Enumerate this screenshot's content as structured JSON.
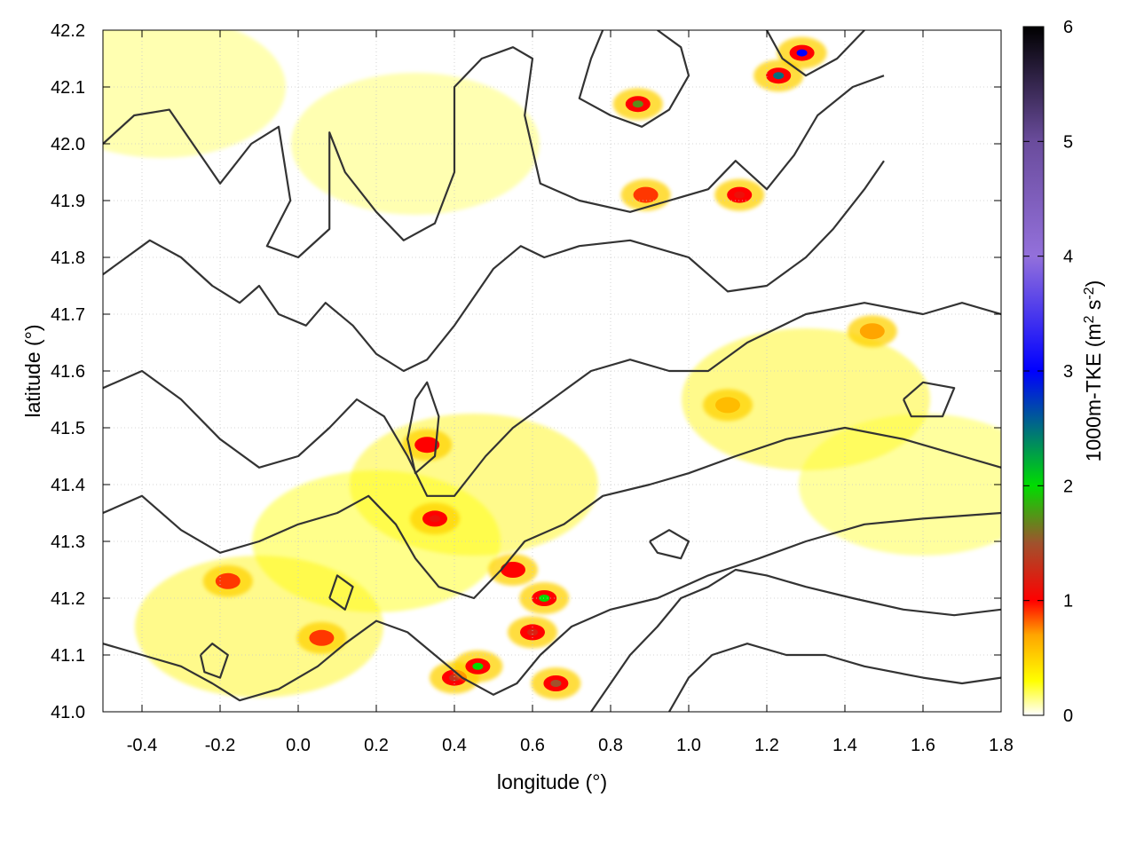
{
  "chart_data": {
    "type": "heatmap",
    "title": "",
    "xlabel": "longitude (°)",
    "ylabel": "latitude (°)",
    "xlim": [
      -0.5,
      1.8
    ],
    "ylim": [
      41.0,
      42.2
    ],
    "x_ticks": [
      "-0.4",
      "-0.2",
      "0.0",
      "0.2",
      "0.4",
      "0.6",
      "0.8",
      "1.0",
      "1.2",
      "1.4",
      "1.6",
      "1.8"
    ],
    "y_ticks": [
      "41.0",
      "41.1",
      "41.2",
      "41.3",
      "41.4",
      "41.5",
      "41.6",
      "41.7",
      "41.8",
      "41.9",
      "42.0",
      "42.1",
      "42.2"
    ],
    "grid": true,
    "colorbar": {
      "label_main": "1000m-TKE (m",
      "label_sup1": "2",
      "label_mid": " s",
      "label_sup2": "-2",
      "label_end": ")",
      "range": [
        0,
        6
      ],
      "ticks": [
        "0",
        "1",
        "2",
        "3",
        "4",
        "5",
        "6"
      ],
      "colors": [
        {
          "v": 0.0,
          "c": "#ffffff"
        },
        {
          "v": 0.3,
          "c": "#ffff00"
        },
        {
          "v": 0.7,
          "c": "#ffa500"
        },
        {
          "v": 1.0,
          "c": "#ff0000"
        },
        {
          "v": 1.5,
          "c": "#a0522d"
        },
        {
          "v": 2.0,
          "c": "#00dd00"
        },
        {
          "v": 3.0,
          "c": "#0000ff"
        },
        {
          "v": 4.0,
          "c": "#9370db"
        },
        {
          "v": 5.0,
          "c": "#6a4c9c"
        },
        {
          "v": 6.0,
          "c": "#000000"
        }
      ]
    },
    "hotspots": [
      {
        "lon": 0.33,
        "lat": 41.47,
        "value": 1.0
      },
      {
        "lon": 0.35,
        "lat": 41.34,
        "value": 1.1
      },
      {
        "lon": 0.4,
        "lat": 41.06,
        "value": 1.3
      },
      {
        "lon": 0.46,
        "lat": 41.08,
        "value": 2.0
      },
      {
        "lon": 0.55,
        "lat": 41.25,
        "value": 1.0
      },
      {
        "lon": 0.63,
        "lat": 41.2,
        "value": 2.0
      },
      {
        "lon": 0.66,
        "lat": 41.05,
        "value": 1.5
      },
      {
        "lon": 0.87,
        "lat": 42.07,
        "value": 1.7
      },
      {
        "lon": 0.89,
        "lat": 41.91,
        "value": 0.9
      },
      {
        "lon": 1.13,
        "lat": 41.91,
        "value": 1.1
      },
      {
        "lon": 1.23,
        "lat": 42.12,
        "value": 2.5
      },
      {
        "lon": 1.29,
        "lat": 42.16,
        "value": 3.0
      },
      {
        "lon": 1.47,
        "lat": 41.67,
        "value": 0.7
      },
      {
        "lon": 1.1,
        "lat": 41.54,
        "value": 0.6
      },
      {
        "lon": -0.18,
        "lat": 41.23,
        "value": 0.9
      },
      {
        "lon": 0.06,
        "lat": 41.13,
        "value": 0.9
      },
      {
        "lon": 0.6,
        "lat": 41.14,
        "value": 1.2
      }
    ],
    "background_tke": [
      {
        "lon": 0.45,
        "lat": 41.4,
        "value": 0.35
      },
      {
        "lon": 0.2,
        "lat": 41.3,
        "value": 0.3
      },
      {
        "lon": 1.3,
        "lat": 41.55,
        "value": 0.35
      },
      {
        "lon": -0.35,
        "lat": 42.1,
        "value": 0.2
      },
      {
        "lon": 1.6,
        "lat": 41.4,
        "value": 0.25
      },
      {
        "lon": 0.3,
        "lat": 42.0,
        "value": 0.2
      },
      {
        "lon": -0.1,
        "lat": 41.15,
        "value": 0.35
      }
    ],
    "contours": [
      [
        [
          -0.5,
          42.0
        ],
        [
          -0.42,
          42.05
        ],
        [
          -0.33,
          42.06
        ],
        [
          -0.25,
          41.98
        ],
        [
          -0.2,
          41.93
        ],
        [
          -0.12,
          42.0
        ],
        [
          -0.05,
          42.03
        ],
        [
          -0.02,
          41.9
        ],
        [
          -0.08,
          41.82
        ],
        [
          0.0,
          41.8
        ],
        [
          0.08,
          41.85
        ],
        [
          0.08,
          42.02
        ],
        [
          0.12,
          41.95
        ],
        [
          0.2,
          41.88
        ],
        [
          0.27,
          41.83
        ],
        [
          0.35,
          41.86
        ],
        [
          0.4,
          41.95
        ],
        [
          0.4,
          42.1
        ],
        [
          0.47,
          42.15
        ],
        [
          0.55,
          42.17
        ],
        [
          0.6,
          42.15
        ],
        [
          0.58,
          42.05
        ],
        [
          0.62,
          41.93
        ],
        [
          0.72,
          41.9
        ],
        [
          0.85,
          41.88
        ],
        [
          0.95,
          41.9
        ],
        [
          1.05,
          41.92
        ],
        [
          1.12,
          41.97
        ],
        [
          1.2,
          41.92
        ],
        [
          1.27,
          41.98
        ],
        [
          1.33,
          42.05
        ],
        [
          1.42,
          42.1
        ],
        [
          1.5,
          42.12
        ]
      ],
      [
        [
          -0.5,
          41.77
        ],
        [
          -0.38,
          41.83
        ],
        [
          -0.3,
          41.8
        ],
        [
          -0.22,
          41.75
        ],
        [
          -0.15,
          41.72
        ],
        [
          -0.1,
          41.75
        ],
        [
          -0.05,
          41.7
        ],
        [
          0.02,
          41.68
        ],
        [
          0.07,
          41.72
        ],
        [
          0.14,
          41.68
        ],
        [
          0.2,
          41.63
        ],
        [
          0.27,
          41.6
        ],
        [
          0.33,
          41.62
        ],
        [
          0.4,
          41.68
        ],
        [
          0.5,
          41.78
        ],
        [
          0.57,
          41.82
        ],
        [
          0.63,
          41.8
        ],
        [
          0.72,
          41.82
        ],
        [
          0.85,
          41.83
        ],
        [
          1.0,
          41.8
        ],
        [
          1.1,
          41.74
        ],
        [
          1.2,
          41.75
        ],
        [
          1.3,
          41.8
        ],
        [
          1.37,
          41.85
        ],
        [
          1.45,
          41.92
        ],
        [
          1.5,
          41.97
        ]
      ],
      [
        [
          -0.5,
          41.57
        ],
        [
          -0.4,
          41.6
        ],
        [
          -0.3,
          41.55
        ],
        [
          -0.2,
          41.48
        ],
        [
          -0.1,
          41.43
        ],
        [
          0.0,
          41.45
        ],
        [
          0.08,
          41.5
        ],
        [
          0.15,
          41.55
        ],
        [
          0.22,
          41.52
        ],
        [
          0.28,
          41.45
        ],
        [
          0.33,
          41.38
        ],
        [
          0.4,
          41.38
        ],
        [
          0.48,
          41.45
        ],
        [
          0.55,
          41.5
        ],
        [
          0.65,
          41.55
        ],
        [
          0.75,
          41.6
        ],
        [
          0.85,
          41.62
        ],
        [
          0.95,
          41.6
        ],
        [
          1.05,
          41.6
        ],
        [
          1.15,
          41.65
        ],
        [
          1.3,
          41.7
        ],
        [
          1.45,
          41.72
        ],
        [
          1.6,
          41.7
        ],
        [
          1.7,
          41.72
        ],
        [
          1.8,
          41.7
        ]
      ],
      [
        [
          -0.5,
          41.35
        ],
        [
          -0.4,
          41.38
        ],
        [
          -0.3,
          41.32
        ],
        [
          -0.2,
          41.28
        ],
        [
          -0.1,
          41.3
        ],
        [
          0.0,
          41.33
        ],
        [
          0.1,
          41.35
        ],
        [
          0.18,
          41.38
        ],
        [
          0.25,
          41.33
        ],
        [
          0.3,
          41.27
        ],
        [
          0.36,
          41.22
        ],
        [
          0.45,
          41.2
        ],
        [
          0.52,
          41.25
        ],
        [
          0.58,
          41.3
        ],
        [
          0.68,
          41.33
        ],
        [
          0.78,
          41.38
        ],
        [
          0.9,
          41.4
        ],
        [
          1.0,
          41.42
        ],
        [
          1.12,
          41.45
        ],
        [
          1.25,
          41.48
        ],
        [
          1.4,
          41.5
        ],
        [
          1.55,
          41.48
        ],
        [
          1.7,
          41.45
        ],
        [
          1.8,
          41.43
        ]
      ],
      [
        [
          -0.5,
          41.12
        ],
        [
          -0.4,
          41.1
        ],
        [
          -0.3,
          41.08
        ],
        [
          -0.22,
          41.05
        ],
        [
          -0.15,
          41.02
        ],
        [
          -0.05,
          41.04
        ],
        [
          0.05,
          41.08
        ],
        [
          0.12,
          41.12
        ],
        [
          0.2,
          41.16
        ],
        [
          0.28,
          41.14
        ],
        [
          0.35,
          41.1
        ],
        [
          0.42,
          41.06
        ],
        [
          0.5,
          41.03
        ],
        [
          0.56,
          41.05
        ],
        [
          0.62,
          41.1
        ],
        [
          0.7,
          41.15
        ],
        [
          0.8,
          41.18
        ],
        [
          0.92,
          41.2
        ],
        [
          1.05,
          41.24
        ],
        [
          1.18,
          41.27
        ],
        [
          1.3,
          41.3
        ],
        [
          1.45,
          41.33
        ],
        [
          1.6,
          41.34
        ],
        [
          1.8,
          41.35
        ]
      ],
      [
        [
          0.75,
          41.0
        ],
        [
          0.8,
          41.05
        ],
        [
          0.85,
          41.1
        ],
        [
          0.92,
          41.15
        ],
        [
          0.98,
          41.2
        ],
        [
          1.05,
          41.22
        ],
        [
          1.12,
          41.25
        ],
        [
          1.2,
          41.24
        ],
        [
          1.3,
          41.22
        ],
        [
          1.42,
          41.2
        ],
        [
          1.55,
          41.18
        ],
        [
          1.68,
          41.17
        ],
        [
          1.8,
          41.18
        ]
      ],
      [
        [
          0.95,
          41.0
        ],
        [
          1.0,
          41.06
        ],
        [
          1.06,
          41.1
        ],
        [
          1.15,
          41.12
        ],
        [
          1.25,
          41.1
        ],
        [
          1.35,
          41.1
        ],
        [
          1.45,
          41.08
        ],
        [
          1.6,
          41.06
        ],
        [
          1.7,
          41.05
        ],
        [
          1.8,
          41.06
        ]
      ],
      [
        [
          0.78,
          42.2
        ],
        [
          0.75,
          42.15
        ],
        [
          0.72,
          42.08
        ],
        [
          0.8,
          42.05
        ],
        [
          0.88,
          42.03
        ],
        [
          0.95,
          42.06
        ],
        [
          1.0,
          42.12
        ],
        [
          0.98,
          42.17
        ],
        [
          0.92,
          42.2
        ]
      ],
      [
        [
          1.2,
          42.2
        ],
        [
          1.24,
          42.15
        ],
        [
          1.3,
          42.12
        ],
        [
          1.38,
          42.15
        ],
        [
          1.45,
          42.2
        ]
      ],
      [
        [
          0.3,
          41.55
        ],
        [
          0.28,
          41.48
        ],
        [
          0.3,
          41.42
        ],
        [
          0.35,
          41.45
        ],
        [
          0.36,
          41.52
        ],
        [
          0.33,
          41.58
        ],
        [
          0.3,
          41.55
        ]
      ],
      [
        [
          0.9,
          41.3
        ],
        [
          0.95,
          41.32
        ],
        [
          1.0,
          41.3
        ],
        [
          0.98,
          41.27
        ],
        [
          0.92,
          41.28
        ],
        [
          0.9,
          41.3
        ]
      ],
      [
        [
          1.55,
          41.55
        ],
        [
          1.6,
          41.58
        ],
        [
          1.68,
          41.57
        ],
        [
          1.65,
          41.52
        ],
        [
          1.57,
          41.52
        ],
        [
          1.55,
          41.55
        ]
      ],
      [
        [
          -0.25,
          41.1
        ],
        [
          -0.22,
          41.12
        ],
        [
          -0.18,
          41.1
        ],
        [
          -0.2,
          41.06
        ],
        [
          -0.24,
          41.07
        ],
        [
          -0.25,
          41.1
        ]
      ],
      [
        [
          0.08,
          41.2
        ],
        [
          0.1,
          41.24
        ],
        [
          0.14,
          41.22
        ],
        [
          0.12,
          41.18
        ],
        [
          0.08,
          41.2
        ]
      ]
    ]
  }
}
